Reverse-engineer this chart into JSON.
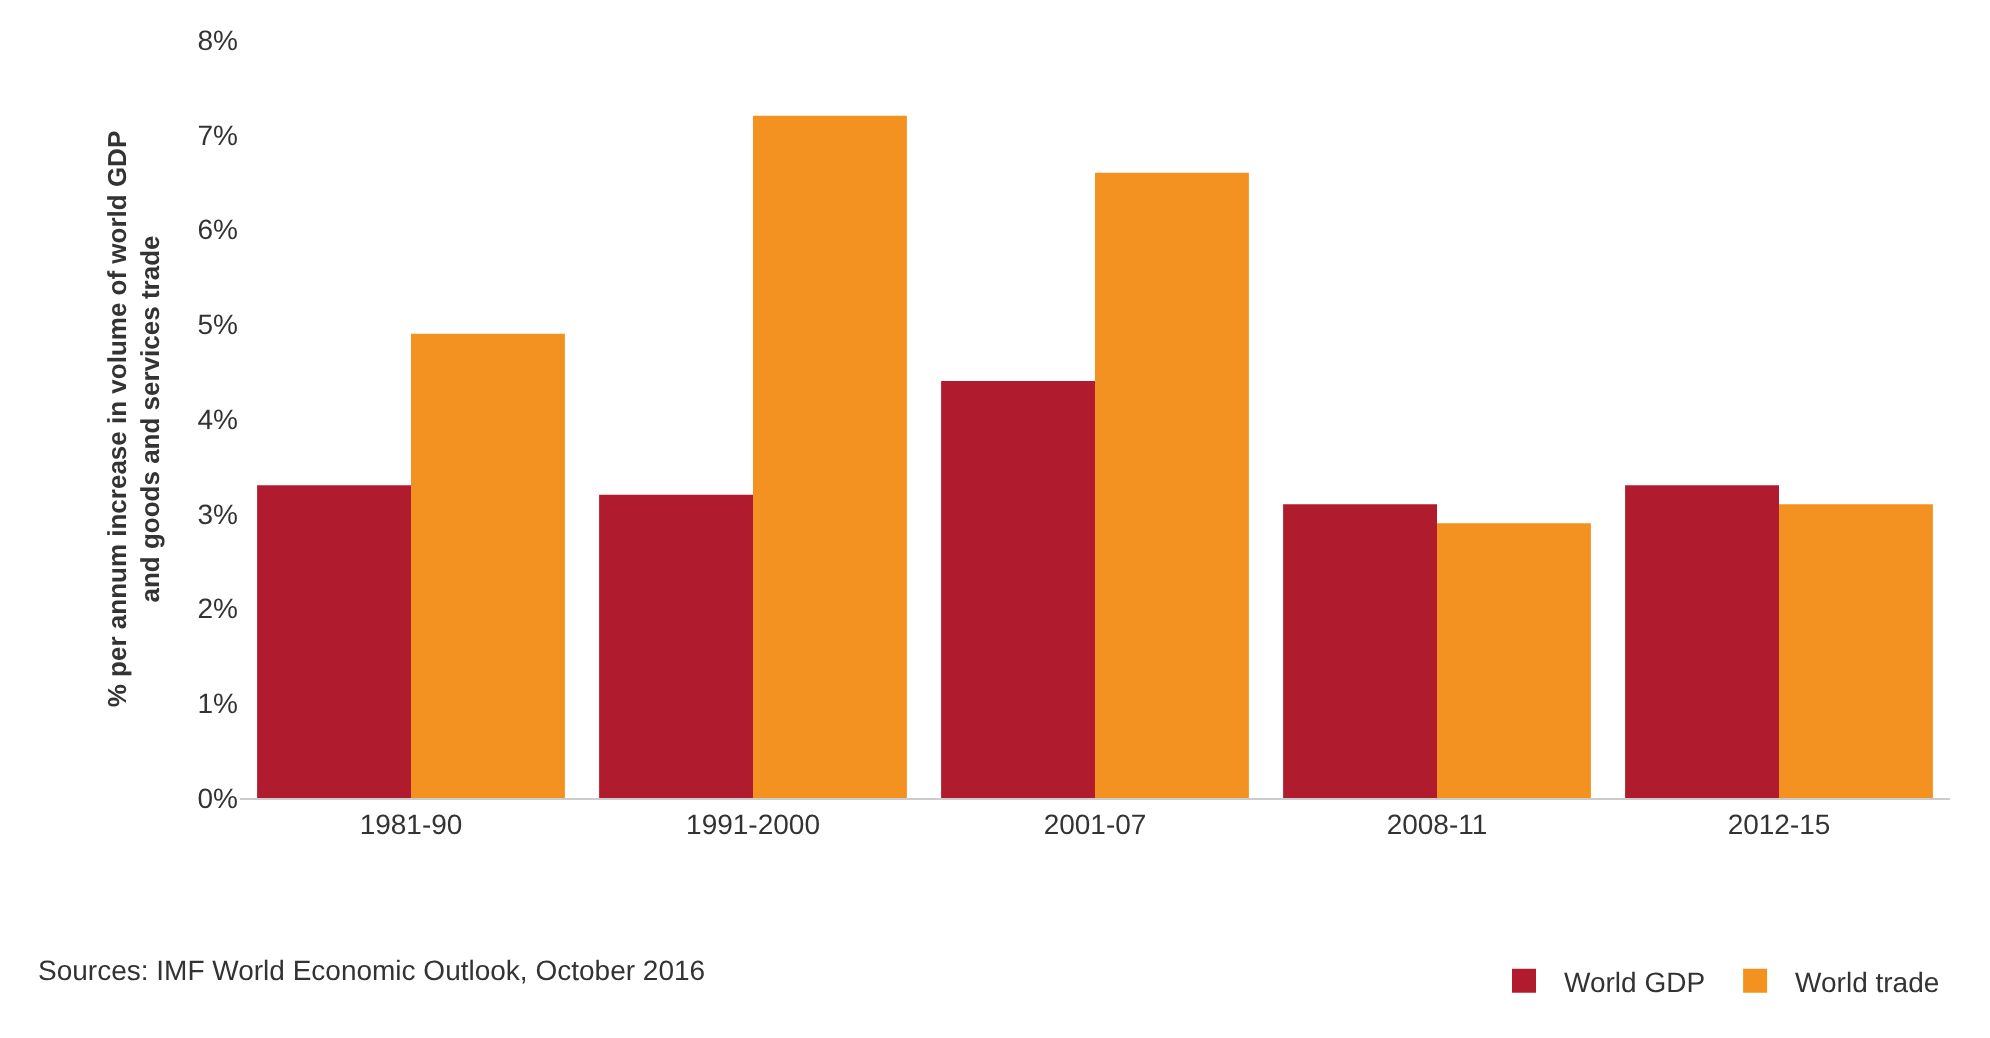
{
  "chart_data": {
    "type": "bar",
    "ylabel": "% per annum increase in volume of world GDP and goods and services trade",
    "categories": [
      "1981-90",
      "1991-2000",
      "2001-07",
      "2008-11",
      "2012-15"
    ],
    "series": [
      {
        "name": "World GDP",
        "color": "#b01c2e",
        "values": [
          3.3,
          3.2,
          4.4,
          3.1,
          3.3
        ]
      },
      {
        "name": "World trade",
        "color": "#f39220",
        "values": [
          4.9,
          7.2,
          6.6,
          2.9,
          3.1
        ]
      }
    ],
    "ylim": [
      0,
      8
    ],
    "yticks": [
      {
        "value": 0,
        "label": "0%"
      },
      {
        "value": 1,
        "label": "1%"
      },
      {
        "value": 2,
        "label": "2%"
      },
      {
        "value": 3,
        "label": "3%"
      },
      {
        "value": 4,
        "label": "4%"
      },
      {
        "value": 5,
        "label": "5%"
      },
      {
        "value": 6,
        "label": "6%"
      },
      {
        "value": 7,
        "label": "7%"
      },
      {
        "value": 8,
        "label": "8%"
      }
    ],
    "legend": "bottom right",
    "annotations": [
      "Sources: IMF World Economic Outlook, October 2016"
    ]
  }
}
